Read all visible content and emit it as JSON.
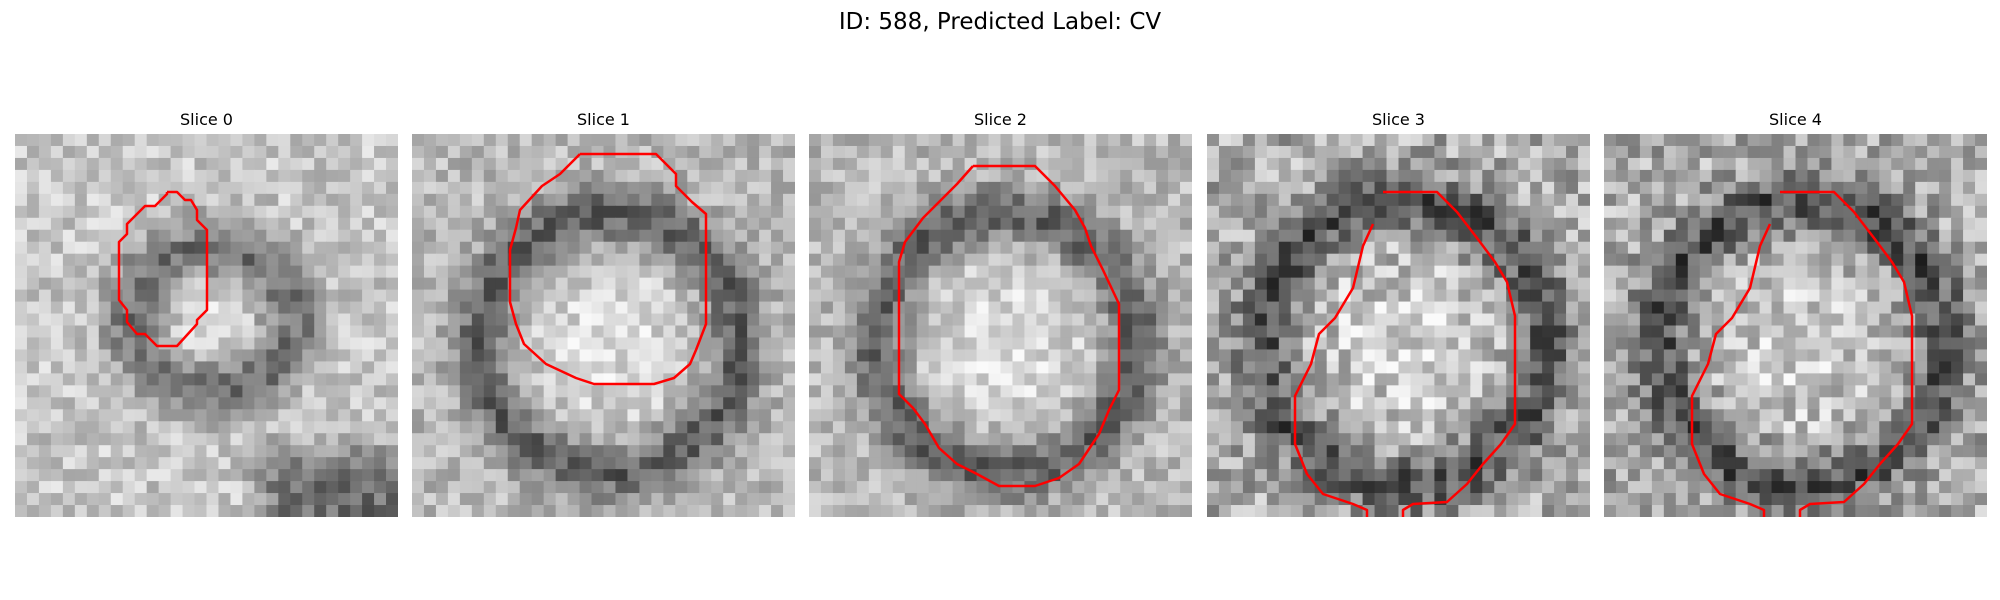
{
  "figure": {
    "title": "ID: 588, Predicted Label: CV"
  },
  "panels": [
    {
      "title": "Slice 0",
      "seed": 11,
      "style": "ring"
    },
    {
      "title": "Slice 1",
      "seed": 23,
      "style": "bright"
    },
    {
      "title": "Slice 2",
      "seed": 37,
      "style": "bright"
    },
    {
      "title": "Slice 3",
      "seed": 41,
      "style": "noisy"
    },
    {
      "title": "Slice 4",
      "seed": 53,
      "style": "noisy"
    }
  ],
  "colors": {
    "contour": "#ff0000",
    "background": "#ffffff"
  }
}
